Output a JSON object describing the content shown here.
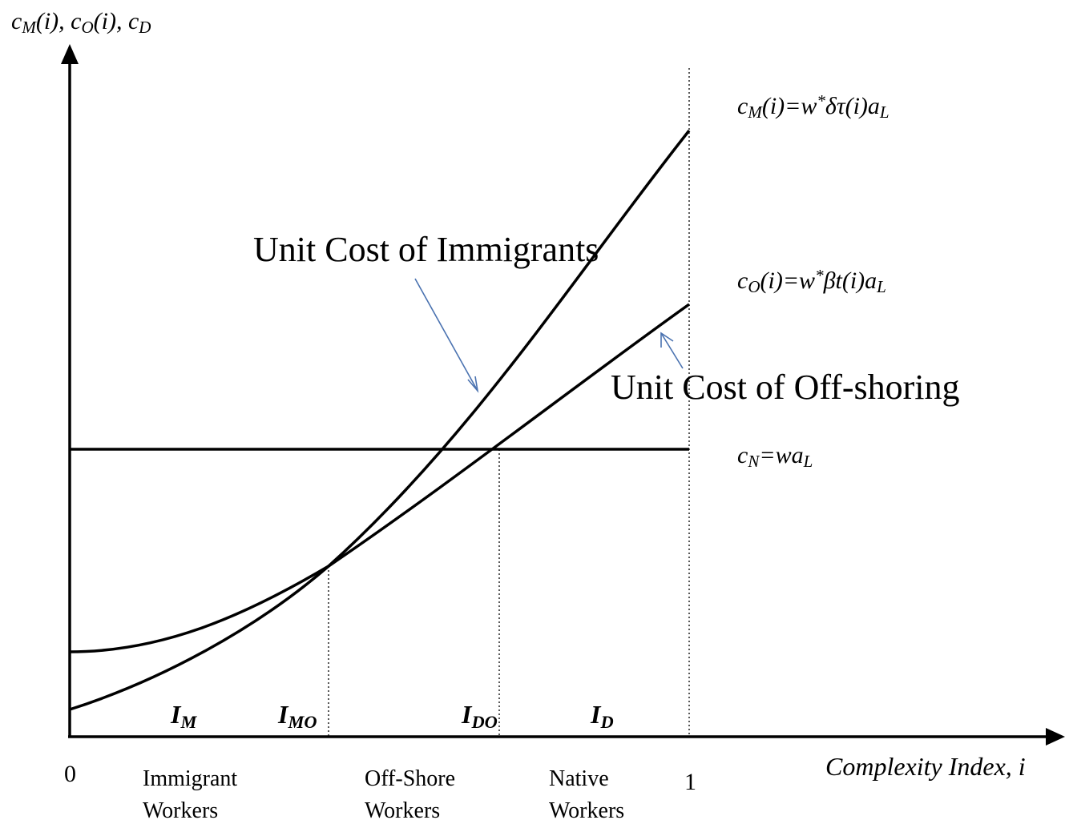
{
  "y_axis_label": [
    "c",
    "M",
    "(i), c",
    "O",
    "(i), c",
    "D"
  ],
  "x_axis_label": "Complexity Index, i",
  "x_ticks": [
    "0",
    "1"
  ],
  "curve_labels": {
    "immigrants": "Unit Cost of Immigrants",
    "offshoring": "Unit Cost of Off-shoring"
  },
  "formulas": {
    "c_m": [
      "c",
      "M",
      "(i)=w",
      "*",
      "δτ(i)a",
      "L"
    ],
    "c_o": [
      "c",
      "O",
      "(i)=w",
      "*",
      "βt(i)a",
      "L"
    ],
    "c_n": [
      "c",
      "N",
      "=wa",
      "L"
    ]
  },
  "thresholds": {
    "i_m": [
      "I",
      "M"
    ],
    "i_mo": [
      "I",
      "MO"
    ],
    "i_do": [
      "I",
      "DO"
    ],
    "i_d": [
      "I",
      "D"
    ]
  },
  "regions": {
    "immigrant": [
      "Immigrant",
      "Workers"
    ],
    "offshore": [
      "Off-Shore",
      "Workers"
    ],
    "native": [
      "Native",
      "Workers"
    ]
  }
}
